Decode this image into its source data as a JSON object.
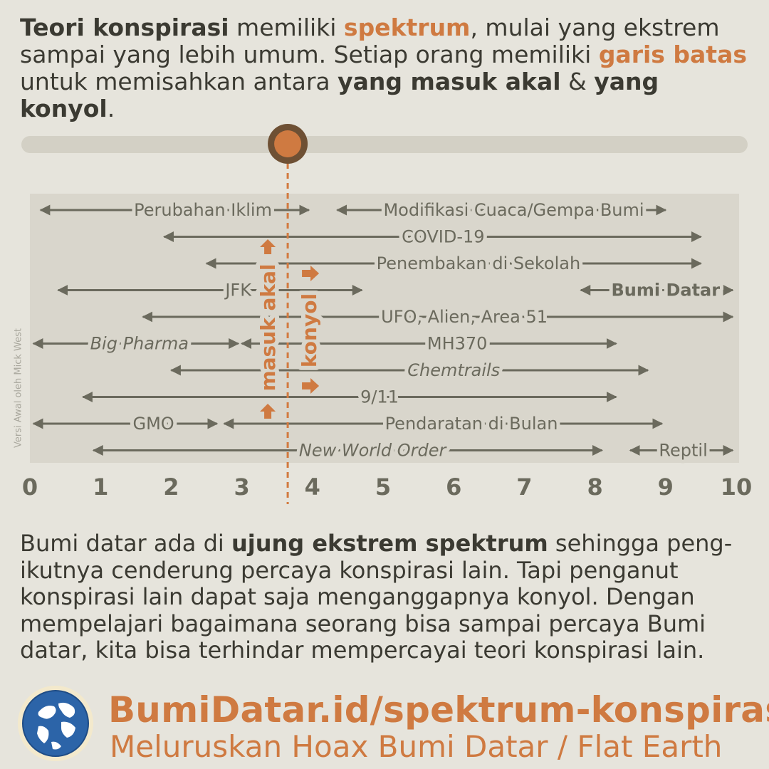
{
  "intro": {
    "p1": "Teori konspirasi",
    "p2": " memiliki ",
    "p3": "spektrum",
    "p4": ", mulai yang ekstrem sampai yang lebih umum. Setiap orang memiliki ",
    "p5": "garis batas",
    "p6": " untuk memisahkan antara ",
    "p7": "yang masuk akal",
    "p8": " & ",
    "p9": "yang konyol",
    "p10": "."
  },
  "marker": {
    "value": 3.65
  },
  "labels": {
    "sensible": "masuk akal",
    "silly": "konyol"
  },
  "credit": "Versi Awal oleh Mick West",
  "colors": {
    "accent": "#cf7a41",
    "text": "#3b3a32",
    "dark": "#6e5034",
    "track": "#d3d0c5",
    "panel": "#d9d6cc",
    "arrow": "#6b6a5d"
  },
  "chart_data": {
    "type": "range",
    "axis": {
      "min": 0,
      "max": 10,
      "ticks": [
        "0",
        "1",
        "2",
        "3",
        "4",
        "5",
        "6",
        "7",
        "8",
        "9",
        "10"
      ]
    },
    "rows": [
      [
        {
          "label": "Perubahan Iklim",
          "start": 0.15,
          "end": 3.95,
          "center": 2.45
        },
        {
          "label": "Modifikasi Cuaca/Gempa Bumi",
          "start": 4.35,
          "end": 9.0,
          "center": 6.85
        }
      ],
      [
        {
          "label": "COVID-19",
          "start": 1.9,
          "end": 9.5,
          "center": 5.85
        }
      ],
      [
        {
          "label": "Penembakan di Sekolah",
          "start": 2.5,
          "end": 9.5,
          "center": 6.35
        }
      ],
      [
        {
          "label": "JFK",
          "start": 0.4,
          "end": 4.7,
          "center": 2.95
        },
        {
          "label": "Bumi Datar",
          "start": 7.8,
          "end": 9.95,
          "center": 9.0,
          "bold": true
        }
      ],
      [
        {
          "label": "UFO, Alien, Area 51",
          "start": 1.6,
          "end": 9.95,
          "center": 6.15
        }
      ],
      [
        {
          "label": "Big Pharma",
          "start": 0.05,
          "end": 2.95,
          "center": 1.55,
          "italic": true
        },
        {
          "label": "MH370",
          "start": 3.0,
          "end": 8.3,
          "center": 6.05
        }
      ],
      [
        {
          "label": "Chemtrails",
          "start": 2.0,
          "end": 8.75,
          "center": 6.0,
          "italic": true
        }
      ],
      [
        {
          "label": "9/11",
          "start": 0.75,
          "end": 8.3,
          "center": 4.95
        }
      ],
      [
        {
          "label": "GMO",
          "start": 0.05,
          "end": 2.65,
          "center": 1.75
        },
        {
          "label": "Pendaratan di Bulan",
          "start": 2.75,
          "end": 8.95,
          "center": 6.25
        }
      ],
      [
        {
          "label": "New World Order",
          "start": 0.9,
          "end": 8.1,
          "center": 4.85,
          "italic": true
        },
        {
          "label": "Reptil",
          "start": 8.5,
          "end": 9.95,
          "center": 9.25
        }
      ]
    ]
  },
  "conclusion": {
    "p1": "Bumi datar ada di ",
    "p2": "ujung ekstrem spektrum",
    "p3": " sehingga peng-ikutnya cenderung percaya konspirasi lain. Tapi penganut konspirasi lain dapat saja menganggapnya konyol. Dengan mempelajari bagaimana seorang bisa sampai percaya Bumi datar, kita bisa terhindar mempercayai teori konspirasi lain."
  },
  "footer": {
    "url": "BumiDatar.id/spektrum-konspirasi",
    "tagline": "Meluruskan Hoax Bumi Datar / Flat Earth",
    "logo_icon": "globe-icon"
  }
}
